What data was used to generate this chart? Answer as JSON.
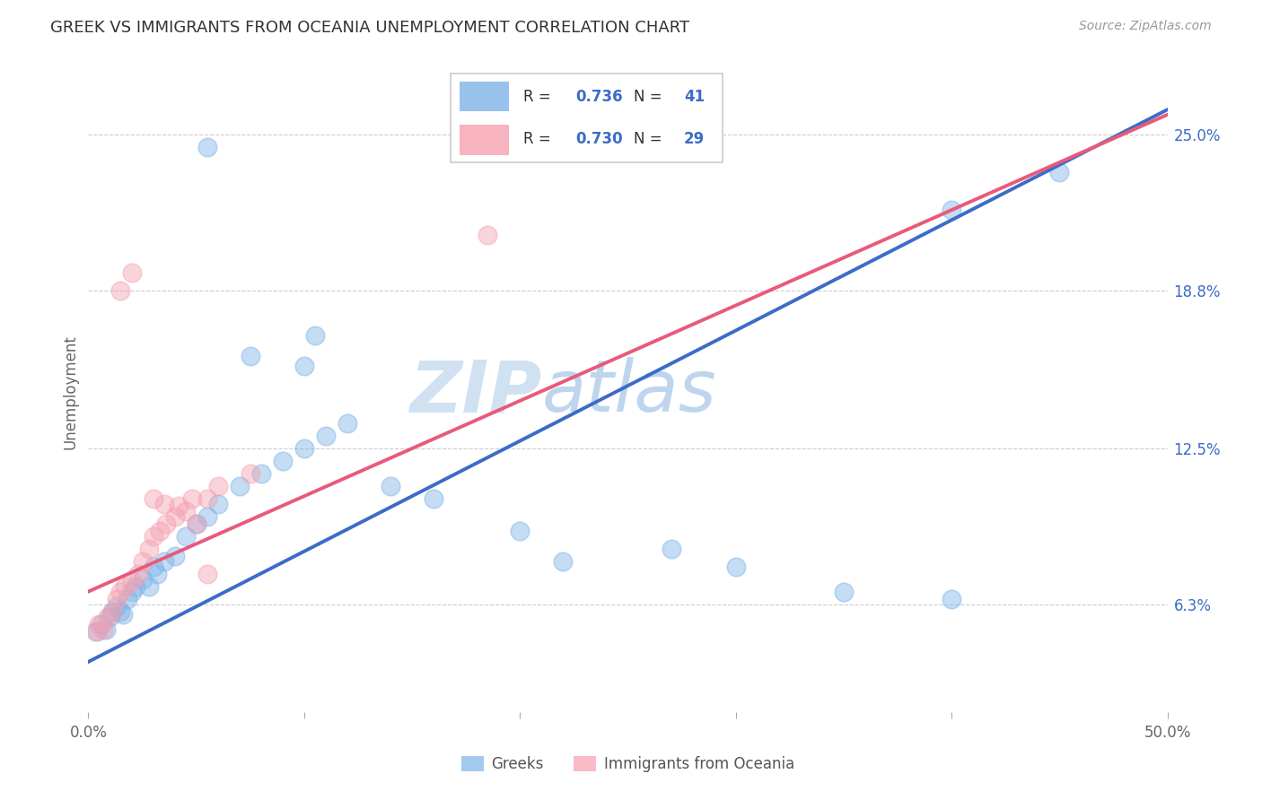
{
  "title": "GREEK VS IMMIGRANTS FROM OCEANIA UNEMPLOYMENT CORRELATION CHART",
  "source": "Source: ZipAtlas.com",
  "ylabel": "Unemployment",
  "ytick_values": [
    6.3,
    12.5,
    18.8,
    25.0
  ],
  "xmin": 0.0,
  "xmax": 50.0,
  "ymin": 2.0,
  "ymax": 27.5,
  "color_blue": "#7EB3E8",
  "color_pink": "#F5A0B0",
  "line_blue": "#3B6CC7",
  "line_pink": "#E85A7A",
  "blue_intercept": 4.0,
  "blue_slope": 0.44,
  "pink_intercept": 6.8,
  "pink_slope": 0.38,
  "watermark_zip": "ZIP",
  "watermark_atlas": "atlas",
  "legend_label1": "Greeks",
  "legend_label2": "Immigrants from Oceania",
  "blue_points": [
    [
      0.4,
      5.2
    ],
    [
      0.6,
      5.5
    ],
    [
      0.8,
      5.3
    ],
    [
      1.0,
      5.8
    ],
    [
      1.1,
      6.0
    ],
    [
      1.3,
      6.2
    ],
    [
      1.5,
      6.0
    ],
    [
      1.6,
      5.9
    ],
    [
      1.8,
      6.5
    ],
    [
      2.0,
      6.8
    ],
    [
      2.2,
      7.0
    ],
    [
      2.5,
      7.3
    ],
    [
      2.8,
      7.0
    ],
    [
      3.0,
      7.8
    ],
    [
      3.2,
      7.5
    ],
    [
      3.5,
      8.0
    ],
    [
      4.0,
      8.2
    ],
    [
      4.5,
      9.0
    ],
    [
      5.0,
      9.5
    ],
    [
      5.5,
      9.8
    ],
    [
      6.0,
      10.3
    ],
    [
      7.0,
      11.0
    ],
    [
      8.0,
      11.5
    ],
    [
      9.0,
      12.0
    ],
    [
      10.0,
      12.5
    ],
    [
      11.0,
      13.0
    ],
    [
      12.0,
      13.5
    ],
    [
      7.5,
      16.2
    ],
    [
      10.5,
      17.0
    ],
    [
      10.0,
      15.8
    ],
    [
      14.0,
      11.0
    ],
    [
      16.0,
      10.5
    ],
    [
      20.0,
      9.2
    ],
    [
      22.0,
      8.0
    ],
    [
      27.0,
      8.5
    ],
    [
      30.0,
      7.8
    ],
    [
      35.0,
      6.8
    ],
    [
      40.0,
      6.5
    ],
    [
      40.0,
      22.0
    ],
    [
      5.5,
      24.5
    ],
    [
      45.0,
      23.5
    ]
  ],
  "pink_points": [
    [
      0.3,
      5.2
    ],
    [
      0.5,
      5.5
    ],
    [
      0.7,
      5.3
    ],
    [
      0.9,
      5.8
    ],
    [
      1.1,
      6.0
    ],
    [
      1.3,
      6.5
    ],
    [
      1.5,
      6.8
    ],
    [
      1.7,
      7.0
    ],
    [
      2.0,
      7.2
    ],
    [
      2.3,
      7.5
    ],
    [
      2.5,
      8.0
    ],
    [
      2.8,
      8.5
    ],
    [
      3.0,
      9.0
    ],
    [
      3.3,
      9.2
    ],
    [
      3.6,
      9.5
    ],
    [
      4.0,
      9.8
    ],
    [
      4.5,
      10.0
    ],
    [
      5.0,
      9.5
    ],
    [
      5.5,
      10.5
    ],
    [
      3.0,
      10.5
    ],
    [
      3.5,
      10.3
    ],
    [
      4.2,
      10.2
    ],
    [
      4.8,
      10.5
    ],
    [
      2.0,
      19.5
    ],
    [
      18.5,
      21.0
    ],
    [
      1.5,
      18.8
    ],
    [
      6.0,
      11.0
    ],
    [
      7.5,
      11.5
    ],
    [
      5.5,
      7.5
    ]
  ]
}
